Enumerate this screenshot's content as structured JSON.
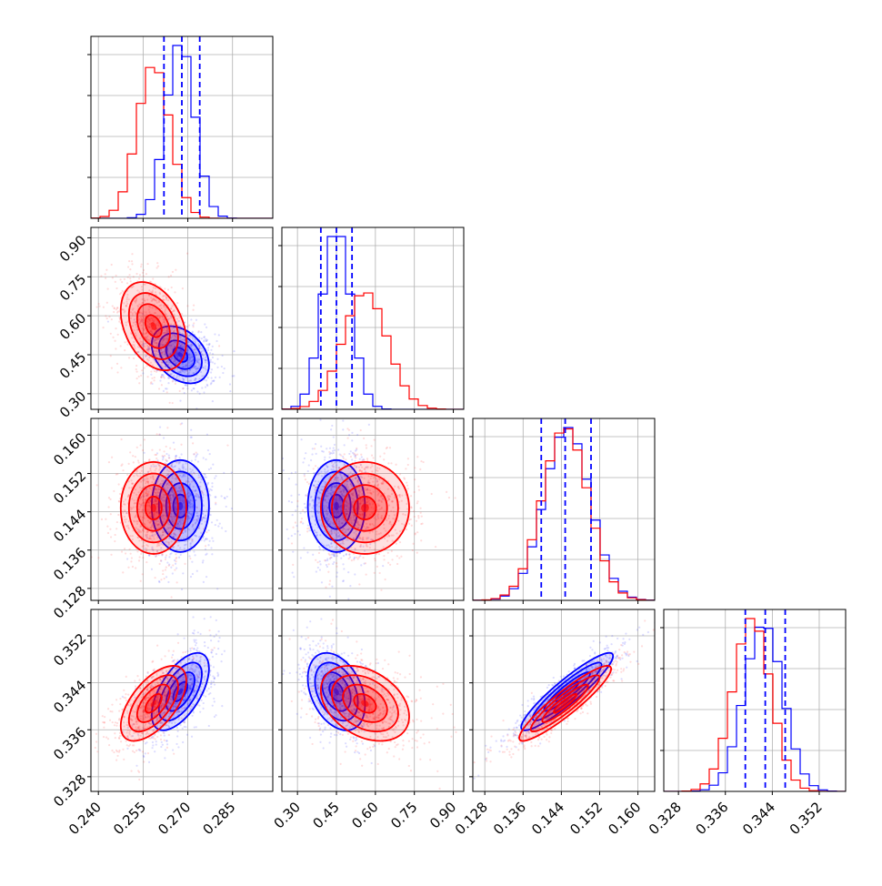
{
  "chart_data": {
    "type": "corner",
    "series": [
      {
        "name": "",
        "color": "#0000ff",
        "means": [
          0.2675,
          0.45,
          0.1452,
          0.3425
        ],
        "sds": [
          0.0048,
          0.055,
          0.0048,
          0.0033
        ]
      },
      {
        "name": "",
        "color": "#ff0000",
        "means": [
          0.2585,
          0.56,
          0.1448,
          0.3405
        ],
        "sds": [
          0.0055,
          0.085,
          0.0048,
          0.0032
        ]
      }
    ],
    "quantiles": [
      {
        "lo": 0.262,
        "med": 0.268,
        "hi": 0.274
      },
      {
        "lo": 0.39,
        "med": 0.45,
        "hi": 0.51
      },
      {
        "lo": 0.1398,
        "med": 0.1448,
        "hi": 0.1502
      },
      {
        "lo": 0.3394,
        "med": 0.3428,
        "hi": 0.3462
      }
    ],
    "correlations": {
      "blue": {
        "0-1": -0.35,
        "0-2": 0.0,
        "0-3": 0.6,
        "1-2": 0.0,
        "1-3": -0.35,
        "2-3": 0.92
      },
      "red": {
        "0-1": -0.35,
        "0-2": 0.0,
        "0-3": 0.6,
        "1-2": 0.0,
        "1-3": -0.35,
        "2-3": 0.92
      }
    },
    "axes": [
      {
        "range": [
          0.2375,
          0.2985
        ],
        "ticks": [
          "0.240",
          "0.255",
          "0.270",
          "0.285"
        ]
      },
      {
        "range": [
          0.24,
          0.94
        ],
        "ticks": [
          "0.30",
          "0.45",
          "0.60",
          "0.75",
          "0.90"
        ]
      },
      {
        "range": [
          0.1255,
          0.1635
        ],
        "ticks": [
          "0.128",
          "0.136",
          "0.144",
          "0.152",
          "0.160"
        ]
      },
      {
        "range": [
          0.3255,
          0.3565
        ],
        "ticks": [
          "0.328",
          "0.336",
          "0.344",
          "0.352"
        ]
      }
    ],
    "grid": true
  }
}
